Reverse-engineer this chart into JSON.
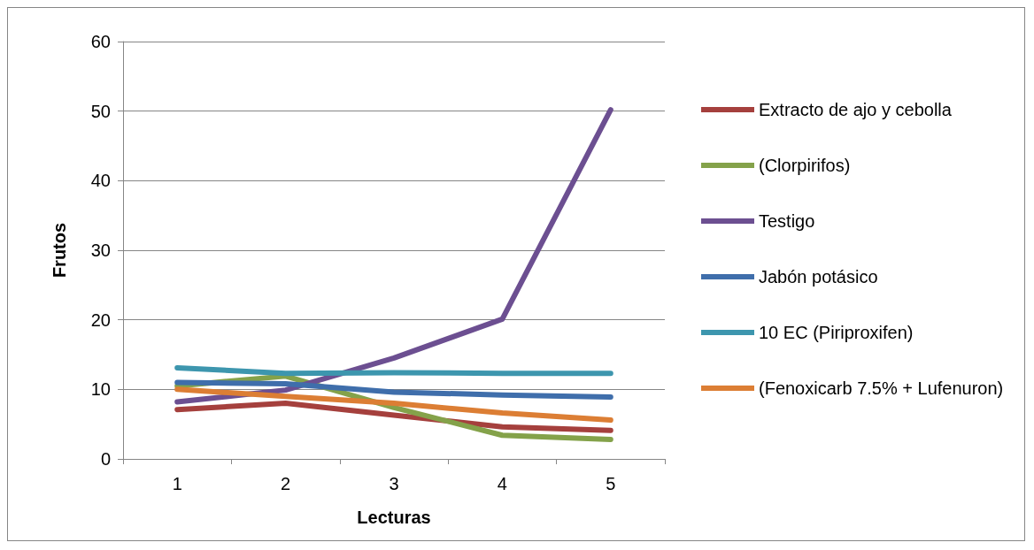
{
  "chart_data": {
    "type": "line",
    "xlabel": "Lecturas",
    "ylabel": "Frutos",
    "categories": [
      "1",
      "2",
      "3",
      "4",
      "5"
    ],
    "ylim": [
      0,
      60
    ],
    "yticks": [
      0,
      10,
      20,
      30,
      40,
      50,
      60
    ],
    "grid": "y",
    "legend": "right",
    "marker": "none",
    "line_style": "solid",
    "series": [
      {
        "name": "Extracto de ajo y cebolla",
        "color": "#a5403d",
        "values": [
          7.1,
          8.0,
          6.3,
          4.6,
          4.1
        ]
      },
      {
        "name": "(Clorpirifos)",
        "color": "#84a24a",
        "values": [
          10.5,
          11.9,
          7.4,
          3.4,
          2.8
        ]
      },
      {
        "name": "Testigo",
        "color": "#6c4f91",
        "values": [
          8.2,
          9.9,
          14.5,
          20.1,
          50.2
        ]
      },
      {
        "name": "Jabón potásico",
        "color": "#3f6eab",
        "values": [
          11.0,
          10.8,
          9.6,
          9.2,
          8.9
        ]
      },
      {
        "name": "10 EC (Piriproxifen)",
        "color": "#3d96ae",
        "values": [
          13.1,
          12.3,
          12.4,
          12.3,
          12.3
        ]
      },
      {
        "name": "(Fenoxicarb 7.5% + Lufenuron)",
        "color": "#dc7e34",
        "values": [
          10.0,
          9.0,
          8.0,
          6.6,
          5.6
        ]
      }
    ]
  }
}
